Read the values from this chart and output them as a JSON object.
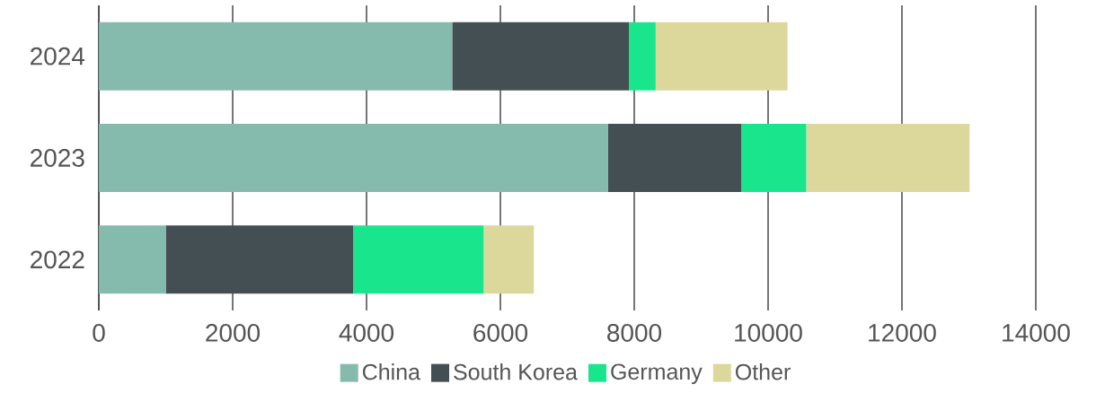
{
  "chart_data": {
    "type": "bar",
    "orientation": "horizontal",
    "stacked": true,
    "categories": [
      "2024",
      "2023",
      "2022"
    ],
    "series": [
      {
        "name": "China",
        "color": "#84bbad",
        "values": [
          5280,
          7610,
          1000
        ]
      },
      {
        "name": "South Korea",
        "color": "#434f53",
        "values": [
          2640,
          1990,
          2800
        ]
      },
      {
        "name": "Germany",
        "color": "#19e68c",
        "values": [
          400,
          970,
          1950
        ]
      },
      {
        "name": "Other",
        "color": "#dcd89c",
        "values": [
          1970,
          2440,
          750
        ]
      }
    ],
    "xlim": [
      0,
      14000
    ],
    "xticks": [
      0,
      2000,
      4000,
      6000,
      8000,
      10000,
      12000,
      14000
    ],
    "grid": "x",
    "legend": "bottom"
  }
}
